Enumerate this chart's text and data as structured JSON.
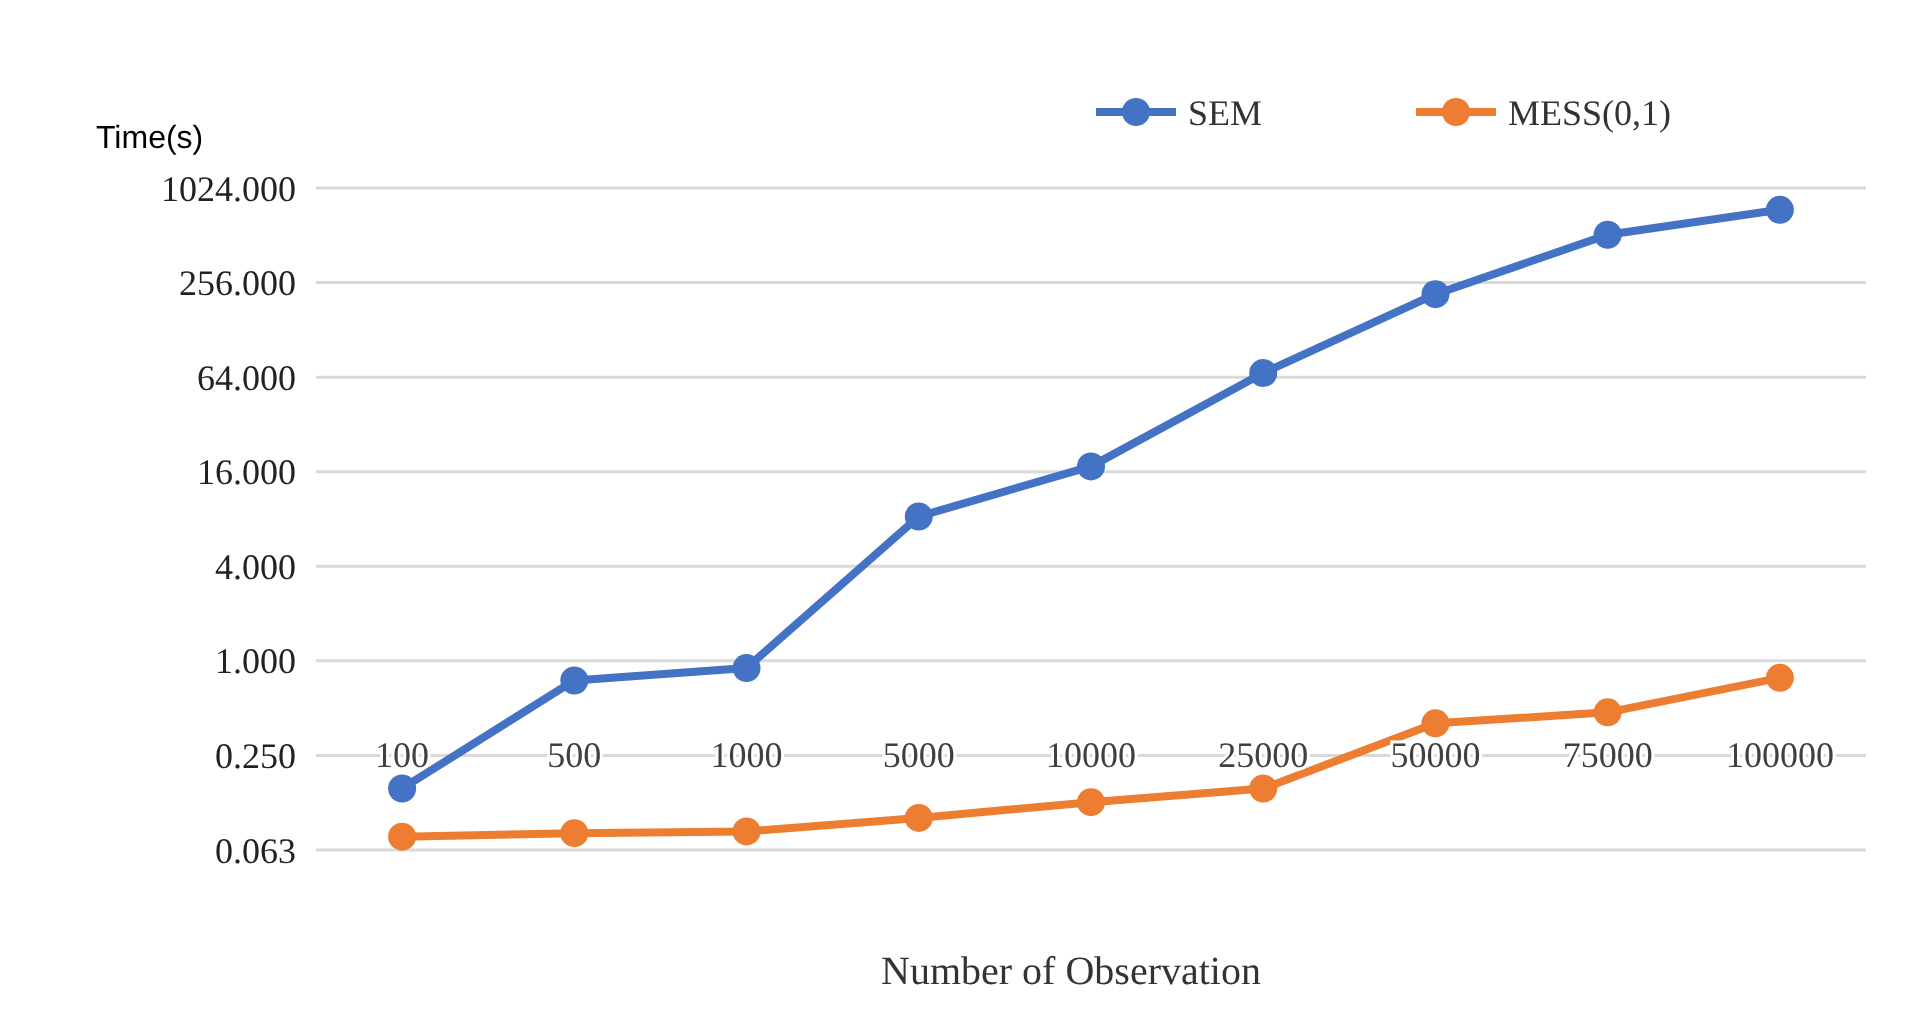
{
  "chart_data": {
    "type": "line",
    "ylabel": "Time(s)",
    "xlabel": "Number of Observation",
    "categories": [
      "100",
      "500",
      "1000",
      "5000",
      "10000",
      "25000",
      "50000",
      "75000",
      "100000"
    ],
    "series": [
      {
        "name": "SEM",
        "color": "#4472c4",
        "values": [
          0.154,
          0.75,
          0.9,
          8.3,
          17.3,
          68,
          216,
          516,
          744
        ]
      },
      {
        "name": "MESS(0,1)",
        "color": "#ed7d31",
        "values": [
          0.076,
          0.08,
          0.082,
          0.1,
          0.126,
          0.154,
          0.4,
          0.47,
          0.78
        ]
      }
    ],
    "log": "y",
    "ylim": [
      0.0625,
      1024
    ],
    "yticks": [
      {
        "value": 0.0625,
        "label": "0.063"
      },
      {
        "value": 0.25,
        "label": "0.250"
      },
      {
        "value": 1,
        "label": "1.000"
      },
      {
        "value": 4,
        "label": "4.000"
      },
      {
        "value": 16,
        "label": "16.000"
      },
      {
        "value": 64,
        "label": "64.000"
      },
      {
        "value": 256,
        "label": "256.000"
      },
      {
        "value": 1024,
        "label": "1024.000"
      }
    ],
    "grid": "y",
    "legend": "top",
    "marker": "circle",
    "line_style": "solid"
  }
}
